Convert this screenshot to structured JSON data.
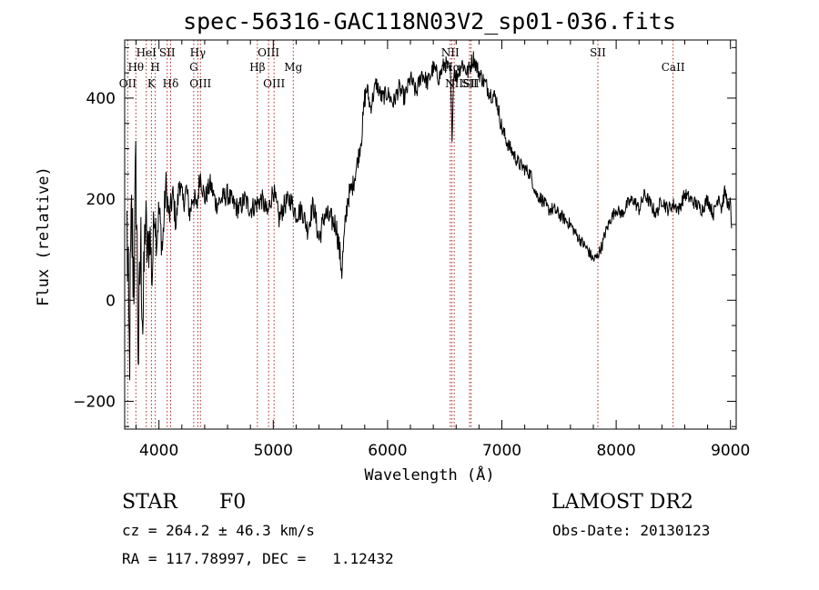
{
  "chart_data": {
    "type": "line",
    "title": "spec-56316-GAC118N03V2_sp01-036.fits",
    "xlabel": "Wavelength (Å)",
    "ylabel": "Flux (relative)",
    "xlim": [
      3700,
      9050
    ],
    "ylim": [
      -255,
      515
    ],
    "xticks": [
      4000,
      5000,
      6000,
      7000,
      8000,
      9000
    ],
    "yticks": [
      -200,
      0,
      200,
      400
    ],
    "grid": false,
    "series": [
      {
        "color": "#000000",
        "x": [
          3720,
          3740,
          3760,
          3780,
          3800,
          3820,
          3840,
          3860,
          3880,
          3900,
          3920,
          3940,
          3960,
          3980,
          4000,
          4030,
          4060,
          4090,
          4120,
          4150,
          4180,
          4210,
          4240,
          4270,
          4300,
          4330,
          4360,
          4400,
          4450,
          4500,
          4550,
          4600,
          4650,
          4700,
          4750,
          4800,
          4850,
          4900,
          4950,
          5000,
          5050,
          5100,
          5150,
          5200,
          5250,
          5300,
          5350,
          5400,
          5450,
          5500,
          5550,
          5600,
          5620,
          5650,
          5700,
          5750,
          5780,
          5800,
          5820,
          5850,
          5900,
          5950,
          6000,
          6050,
          6100,
          6150,
          6200,
          6250,
          6300,
          6350,
          6400,
          6450,
          6500,
          6550,
          6563,
          6580,
          6600,
          6650,
          6700,
          6750,
          6800,
          6850,
          6900,
          6950,
          7000,
          7050,
          7100,
          7150,
          7200,
          7250,
          7300,
          7350,
          7400,
          7450,
          7500,
          7550,
          7600,
          7650,
          7700,
          7750,
          7800,
          7830,
          7850,
          7880,
          7900,
          7950,
          8000,
          8050,
          8100,
          8150,
          8200,
          8250,
          8300,
          8350,
          8400,
          8450,
          8500,
          8550,
          8600,
          8650,
          8700,
          8750,
          8800,
          8850,
          8900,
          8920,
          8950,
          8970,
          8990,
          9000,
          9010
        ],
        "y": [
          140,
          -130,
          150,
          50,
          260,
          -120,
          120,
          -60,
          170,
          80,
          140,
          40,
          190,
          120,
          180,
          100,
          230,
          160,
          210,
          150,
          240,
          190,
          220,
          170,
          210,
          180,
          250,
          200,
          230,
          190,
          200,
          210,
          190,
          180,
          200,
          180,
          190,
          200,
          170,
          220,
          160,
          190,
          200,
          170,
          180,
          140,
          190,
          120,
          170,
          160,
          150,
          60,
          120,
          200,
          230,
          290,
          340,
          400,
          420,
          380,
          430,
          400,
          410,
          390,
          420,
          400,
          440,
          410,
          450,
          430,
          460,
          440,
          470,
          450,
          320,
          460,
          440,
          470,
          450,
          480,
          450,
          430,
          410,
          400,
          340,
          310,
          290,
          270,
          260,
          250,
          210,
          200,
          180,
          180,
          170,
          160,
          150,
          130,
          115,
          100,
          80,
          85,
          95,
          110,
          130,
          160,
          180,
          170,
          190,
          200,
          180,
          210,
          190,
          170,
          200,
          180,
          190,
          180,
          210,
          200,
          190,
          180,
          200,
          170,
          210,
          180,
          215,
          200,
          170,
          215,
          130
        ],
        "noise_amp": [
          120,
          140,
          130,
          130,
          120,
          110,
          100,
          90,
          80,
          70,
          60,
          55,
          50,
          45,
          40,
          35,
          35,
          30,
          30,
          28,
          28,
          26,
          26,
          25,
          25,
          25,
          25,
          22,
          22,
          22,
          22,
          22,
          22,
          22,
          22,
          22,
          22,
          22,
          22,
          22,
          22,
          22,
          22,
          22,
          22,
          22,
          22,
          25,
          25,
          25,
          25,
          30,
          30,
          25,
          20,
          20,
          25,
          25,
          20,
          18,
          18,
          18,
          18,
          18,
          18,
          18,
          18,
          18,
          18,
          18,
          18,
          18,
          18,
          18,
          18,
          18,
          18,
          18,
          18,
          18,
          18,
          18,
          18,
          18,
          18,
          15,
          15,
          15,
          14,
          14,
          14,
          14,
          14,
          14,
          14,
          12,
          12,
          12,
          12,
          12,
          12,
          12,
          12,
          12,
          12,
          12,
          12,
          12,
          14,
          14,
          14,
          14,
          14,
          14,
          14,
          14,
          14,
          14,
          14,
          14,
          14,
          14,
          14,
          14,
          14,
          14,
          14,
          14,
          14,
          14,
          14
        ]
      }
    ],
    "lines": [
      {
        "name": "OII",
        "x": 3727,
        "row": 3
      },
      {
        "name": "Hθ",
        "x": 3798,
        "row": 2
      },
      {
        "name": "HeI",
        "x": 3889,
        "row": 1
      },
      {
        "name": "K",
        "x": 3934,
        "row": 3
      },
      {
        "name": "H",
        "x": 3968,
        "row": 2
      },
      {
        "name": "SII",
        "x": 4072,
        "row": 1
      },
      {
        "name": "Hδ",
        "x": 4102,
        "row": 3
      },
      {
        "name": "G",
        "x": 4304,
        "row": 2
      },
      {
        "name": "Hγ",
        "x": 4340,
        "row": 1
      },
      {
        "name": "OIII",
        "x": 4363,
        "row": 3
      },
      {
        "name": "Hβ",
        "x": 4861,
        "row": 2
      },
      {
        "name": "OIII",
        "x": 4959,
        "row": 1
      },
      {
        "name": "OIII",
        "x": 5007,
        "row": 3
      },
      {
        "name": "Mg",
        "x": 5175,
        "row": 2
      },
      {
        "name": "NII",
        "x": 6548,
        "row": 1
      },
      {
        "name": "Hα",
        "x": 6563,
        "row": 2
      },
      {
        "name": "NII",
        "x": 6583,
        "row": 3
      },
      {
        "name": "SII",
        "x": 6717,
        "row": 3
      },
      {
        "name": "SII",
        "x": 6731,
        "row": 3
      },
      {
        "name": "SII",
        "x": 7840,
        "row": 1
      },
      {
        "name": "CaII",
        "x": 8498,
        "row": 2
      }
    ]
  },
  "info": {
    "object_type": "STAR",
    "subclass": "F0",
    "survey": "LAMOST DR2",
    "redshift": "cz = 264.2 ± 46.3 km/s",
    "obs_date": "Obs-Date: 20130123",
    "coords": "RA = 117.78997, DEC =   1.12432"
  }
}
